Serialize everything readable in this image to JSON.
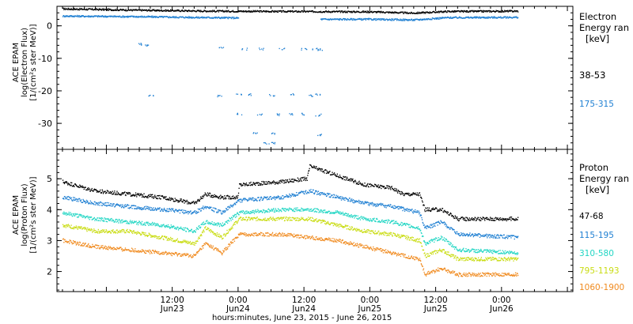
{
  "panels": [
    {
      "id": "electron",
      "ylabel": [
        "ACE EPAM",
        "log(Electron Flux)",
        "[1/(cm²s ster MeV)]"
      ],
      "legend_title": [
        "Electron",
        "Energy ran",
        "[keV]"
      ],
      "legend_entries": [
        {
          "label": "38-53",
          "color": "#000000"
        },
        {
          "label": "175-315",
          "color": "#1e7fd2"
        }
      ]
    },
    {
      "id": "proton",
      "ylabel": [
        "ACE EPAM",
        "log(Proton Flux)",
        "[1/(cm²s ster MeV)]"
      ],
      "legend_title": [
        "Proton",
        "Energy ran",
        "[keV]"
      ],
      "legend_entries": [
        {
          "label": "47-68",
          "color": "#000000"
        },
        {
          "label": "115-195",
          "color": "#1e7fd2"
        },
        {
          "label": "310-580",
          "color": "#22d6c4"
        },
        {
          "label": "795-1193",
          "color": "#c9dc12"
        },
        {
          "label": "1060-1900",
          "color": "#f08a1e"
        }
      ]
    }
  ],
  "xaxis_title": "hours:minutes, June 23, 2015 - June 26, 2015",
  "chart_data": [
    {
      "type": "scatter",
      "panel": "electron",
      "xlim": [
        "2015-06-22 15:00",
        "2015-06-26 13:00"
      ],
      "ylim": [
        -38,
        6
      ],
      "yticks": [
        0,
        -10,
        -20,
        -30
      ],
      "xticks": [
        {
          "time": "2015-06-23 12:00",
          "label": [
            "12:00",
            "Jun23"
          ]
        },
        {
          "time": "2015-06-24 00:00",
          "label": [
            "0:00",
            "Jun24"
          ]
        },
        {
          "time": "2015-06-24 12:00",
          "label": [
            "12:00",
            "Jun24"
          ]
        },
        {
          "time": "2015-06-25 00:00",
          "label": [
            "0:00",
            "Jun25"
          ]
        },
        {
          "time": "2015-06-25 12:00",
          "label": [
            "12:00",
            "Jun25"
          ]
        },
        {
          "time": "2015-06-26 00:00",
          "label": [
            "0:00",
            "Jun26"
          ]
        }
      ],
      "series": [
        {
          "name": "38-53",
          "color": "#000000",
          "x": [
            "2015-06-22 16:00",
            "2015-06-23 06:00",
            "2015-06-23 20:00",
            "2015-06-24 10:00",
            "2015-06-25 00:00",
            "2015-06-25 08:00",
            "2015-06-25 14:00",
            "2015-06-26 03:00"
          ],
          "y": [
            5.2,
            4.8,
            4.5,
            4.4,
            4.3,
            3.9,
            4.4,
            4.5
          ]
        },
        {
          "name": "175-315",
          "color": "#1e7fd2",
          "x": [
            "2015-06-22 16:00",
            "2015-06-23 06:00",
            "2015-06-23 20:00",
            "2015-06-24 00:00",
            "2015-06-24 15:00",
            "2015-06-25 00:00",
            "2015-06-25 08:00",
            "2015-06-25 14:00",
            "2015-06-26 03:00"
          ],
          "y": [
            3.0,
            2.8,
            2.5,
            2.4,
            2.0,
            2.0,
            1.8,
            2.5,
            2.6
          ],
          "gap": [
            "2015-06-24 00:05",
            "2015-06-24 15:00"
          ],
          "scatter_points": {
            "x": [
              "2015-06-23 06:00",
              "2015-06-23 07:00",
              "2015-06-23 21:00",
              "2015-06-23 08:00",
              "2015-06-23 20:30",
              "2015-06-24 00:10",
              "2015-06-24 02:00",
              "2015-06-24 06:00",
              "2015-06-24 10:00",
              "2015-06-24 13:00",
              "2015-06-24 14:30",
              "2015-06-24 01:00",
              "2015-06-24 04:00",
              "2015-06-24 08:00",
              "2015-06-24 12:00",
              "2015-06-24 14:00",
              "2015-06-24 15:00",
              "2015-06-24 00:00",
              "2015-06-24 04:00",
              "2015-06-24 07:00",
              "2015-06-24 09:30",
              "2015-06-24 11:30",
              "2015-06-24 14:30",
              "2015-06-24 03:00",
              "2015-06-24 06:00",
              "2015-06-24 14:30",
              "2015-06-24 05:00",
              "2015-06-24 06:30"
            ],
            "y": [
              -5.5,
              -5.8,
              -6.5,
              -21.5,
              -21.5,
              -21.0,
              -21.0,
              -21.2,
              -21.0,
              -21.3,
              -21.0,
              -7.0,
              -7.0,
              -7.0,
              -7.0,
              -7.0,
              -7.2,
              -27.0,
              -27.0,
              -27.2,
              -27.0,
              -27.0,
              -27.3,
              -33.0,
              -33.0,
              -33.5,
              -36.0,
              -36.0
            ]
          }
        }
      ]
    },
    {
      "type": "scatter",
      "panel": "proton",
      "xlim": [
        "2015-06-22 15:00",
        "2015-06-26 13:00"
      ],
      "ylim": [
        1.35,
        5.95
      ],
      "yticks": [
        2,
        3,
        4,
        5
      ],
      "xticks": [
        {
          "time": "2015-06-23 12:00",
          "label": [
            "12:00",
            "Jun23"
          ]
        },
        {
          "time": "2015-06-24 00:00",
          "label": [
            "0:00",
            "Jun24"
          ]
        },
        {
          "time": "2015-06-24 12:00",
          "label": [
            "12:00",
            "Jun24"
          ]
        },
        {
          "time": "2015-06-25 00:00",
          "label": [
            "0:00",
            "Jun25"
          ]
        },
        {
          "time": "2015-06-25 12:00",
          "label": [
            "12:00",
            "Jun25"
          ]
        },
        {
          "time": "2015-06-26 00:00",
          "label": [
            "0:00",
            "Jun26"
          ]
        }
      ],
      "series": [
        {
          "name": "47-68",
          "color": "#000000",
          "x": [
            "2015-06-22 16:00",
            "2015-06-22 22:00",
            "2015-06-23 04:00",
            "2015-06-23 10:00",
            "2015-06-23 16:00",
            "2015-06-23 18:00",
            "2015-06-23 21:00",
            "2015-06-23 23:55",
            "2015-06-24 00:10",
            "2015-06-24 08:00",
            "2015-06-24 12:30",
            "2015-06-24 13:00",
            "2015-06-24 18:00",
            "2015-06-24 23:00",
            "2015-06-25 04:00",
            "2015-06-25 06:00",
            "2015-06-25 09:00",
            "2015-06-25 10:00",
            "2015-06-25 13:00",
            "2015-06-25 16:00",
            "2015-06-26 03:00"
          ],
          "y": [
            4.9,
            4.6,
            4.5,
            4.4,
            4.2,
            4.5,
            4.4,
            4.4,
            4.8,
            4.9,
            5.0,
            5.4,
            5.1,
            4.8,
            4.7,
            4.5,
            4.5,
            4.0,
            4.0,
            3.7,
            3.7
          ]
        },
        {
          "name": "115-195",
          "color": "#1e7fd2",
          "x": [
            "2015-06-22 16:00",
            "2015-06-22 22:00",
            "2015-06-23 04:00",
            "2015-06-23 10:00",
            "2015-06-23 16:00",
            "2015-06-23 18:00",
            "2015-06-23 21:00",
            "2015-06-24 00:10",
            "2015-06-24 08:00",
            "2015-06-24 13:00",
            "2015-06-24 18:00",
            "2015-06-24 23:00",
            "2015-06-25 04:00",
            "2015-06-25 09:00",
            "2015-06-25 10:00",
            "2015-06-25 13:00",
            "2015-06-25 16:00",
            "2015-06-26 03:00"
          ],
          "y": [
            4.4,
            4.2,
            4.1,
            4.0,
            3.9,
            4.1,
            3.9,
            4.3,
            4.4,
            4.6,
            4.4,
            4.2,
            4.1,
            3.9,
            3.4,
            3.6,
            3.2,
            3.1
          ]
        },
        {
          "name": "310-580",
          "color": "#22d6c4",
          "x": [
            "2015-06-22 16:00",
            "2015-06-22 22:00",
            "2015-06-23 04:00",
            "2015-06-23 10:00",
            "2015-06-23 16:00",
            "2015-06-23 18:00",
            "2015-06-23 21:00",
            "2015-06-24 00:10",
            "2015-06-24 08:00",
            "2015-06-24 13:00",
            "2015-06-24 18:00",
            "2015-06-24 23:00",
            "2015-06-25 04:00",
            "2015-06-25 09:00",
            "2015-06-25 10:00",
            "2015-06-25 13:00",
            "2015-06-25 16:00",
            "2015-06-26 03:00"
          ],
          "y": [
            3.9,
            3.7,
            3.6,
            3.5,
            3.3,
            3.6,
            3.5,
            3.9,
            4.0,
            4.0,
            3.9,
            3.7,
            3.6,
            3.4,
            2.9,
            3.1,
            2.7,
            2.6
          ]
        },
        {
          "name": "795-1193",
          "color": "#c9dc12",
          "x": [
            "2015-06-22 16:00",
            "2015-06-22 22:00",
            "2015-06-23 04:00",
            "2015-06-23 10:00",
            "2015-06-23 16:00",
            "2015-06-23 18:00",
            "2015-06-23 21:00",
            "2015-06-24 00:10",
            "2015-06-24 08:00",
            "2015-06-24 13:00",
            "2015-06-24 18:00",
            "2015-06-24 23:00",
            "2015-06-25 04:00",
            "2015-06-25 09:00",
            "2015-06-25 10:00",
            "2015-06-25 13:00",
            "2015-06-25 16:00",
            "2015-06-26 03:00"
          ],
          "y": [
            3.5,
            3.3,
            3.3,
            3.1,
            2.9,
            3.4,
            3.1,
            3.7,
            3.7,
            3.7,
            3.5,
            3.3,
            3.2,
            3.0,
            2.5,
            2.7,
            2.4,
            2.4
          ]
        },
        {
          "name": "1060-1900",
          "color": "#f08a1e",
          "x": [
            "2015-06-22 16:00",
            "2015-06-22 22:00",
            "2015-06-23 04:00",
            "2015-06-23 10:00",
            "2015-06-23 16:00",
            "2015-06-23 18:00",
            "2015-06-23 21:00",
            "2015-06-24 00:10",
            "2015-06-24 08:00",
            "2015-06-24 13:00",
            "2015-06-24 18:00",
            "2015-06-24 23:00",
            "2015-06-25 04:00",
            "2015-06-25 09:00",
            "2015-06-25 10:00",
            "2015-06-25 13:00",
            "2015-06-25 16:00",
            "2015-06-26 03:00"
          ],
          "y": [
            3.0,
            2.8,
            2.7,
            2.6,
            2.5,
            2.9,
            2.6,
            3.2,
            3.2,
            3.1,
            3.0,
            2.8,
            2.6,
            2.4,
            1.9,
            2.1,
            1.9,
            1.9
          ]
        }
      ]
    }
  ]
}
